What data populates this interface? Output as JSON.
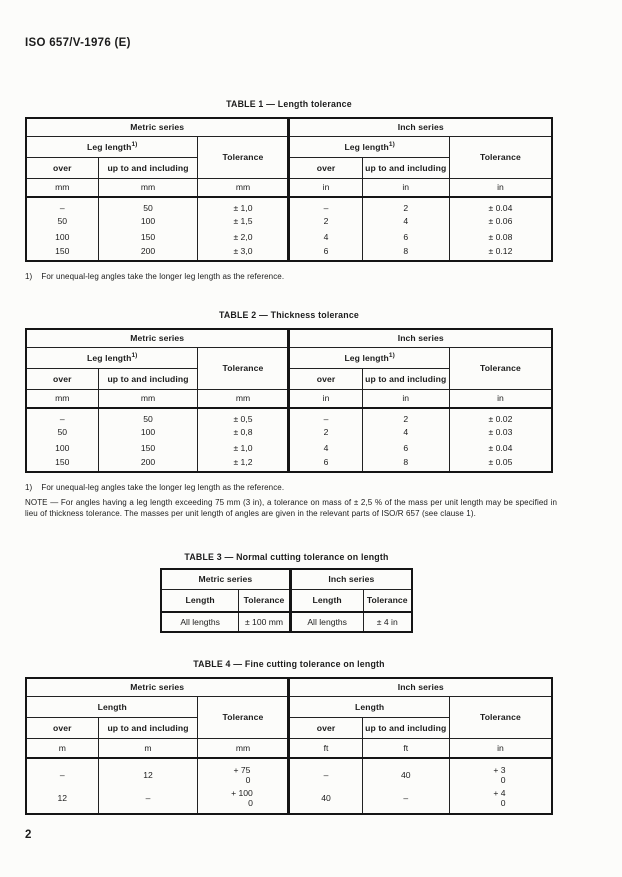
{
  "page": {
    "doc_ref": "ISO 657/V-1976 (E)",
    "page_number": "2"
  },
  "common": {
    "metric_series": "Metric series",
    "inch_series": "Inch series",
    "leg_length": "Leg length",
    "length": "Length",
    "tolerance": "Tolerance",
    "over": "over",
    "up_to": "up to and including",
    "footnote_ref": "1)"
  },
  "table1": {
    "title": "TABLE 1 — Length tolerance",
    "units": [
      "mm",
      "mm",
      "mm",
      "in",
      "in",
      "in"
    ],
    "rows": [
      [
        "–",
        "50",
        "± 1,0",
        "–",
        "2",
        "± 0.04"
      ],
      [
        "50",
        "100",
        "± 1,5",
        "2",
        "4",
        "± 0.06"
      ],
      [
        "100",
        "150",
        "± 2,0",
        "4",
        "6",
        "± 0.08"
      ],
      [
        "150",
        "200",
        "± 3,0",
        "6",
        "8",
        "± 0.12"
      ]
    ],
    "footnote": "For unequal-leg angles take the longer leg length as the reference."
  },
  "table2": {
    "title": "TABLE 2 — Thickness tolerance",
    "units": [
      "mm",
      "mm",
      "mm",
      "in",
      "in",
      "in"
    ],
    "rows": [
      [
        "–",
        "50",
        "± 0,5",
        "–",
        "2",
        "± 0.02"
      ],
      [
        "50",
        "100",
        "± 0,8",
        "2",
        "4",
        "± 0.03"
      ],
      [
        "100",
        "150",
        "± 1,0",
        "4",
        "6",
        "± 0.04"
      ],
      [
        "150",
        "200",
        "± 1,2",
        "6",
        "8",
        "± 0.05"
      ]
    ],
    "footnote": "For unequal-leg angles take the longer leg length as the reference.",
    "note": "NOTE — For angles having a leg length exceeding 75 mm (3 in), a tolerance on mass of ± 2,5 % of the mass per unit length may be specified in lieu of thickness tolerance. The masses per unit length of angles are given in the relevant parts of ISO/R 657 (see clause 1)."
  },
  "table3": {
    "title": "TABLE 3 — Normal cutting tolerance on length",
    "rows": [
      [
        "All lengths",
        "± 100 mm",
        "All lengths",
        "± 4 in"
      ]
    ]
  },
  "table4": {
    "title": "TABLE 4 — Fine cutting tolerance on length",
    "units": [
      "m",
      "m",
      "mm",
      "ft",
      "ft",
      "in"
    ],
    "rows": [
      {
        "m_over": "–",
        "m_upto": "12",
        "m_tol": [
          "+ 75",
          "0"
        ],
        "i_over": "–",
        "i_upto": "40",
        "i_tol": [
          "+ 3",
          "0"
        ]
      },
      {
        "m_over": "12",
        "m_upto": "–",
        "m_tol": [
          "+ 100",
          "0"
        ],
        "i_over": "40",
        "i_upto": "–",
        "i_tol": [
          "+ 4",
          "0"
        ]
      }
    ]
  }
}
